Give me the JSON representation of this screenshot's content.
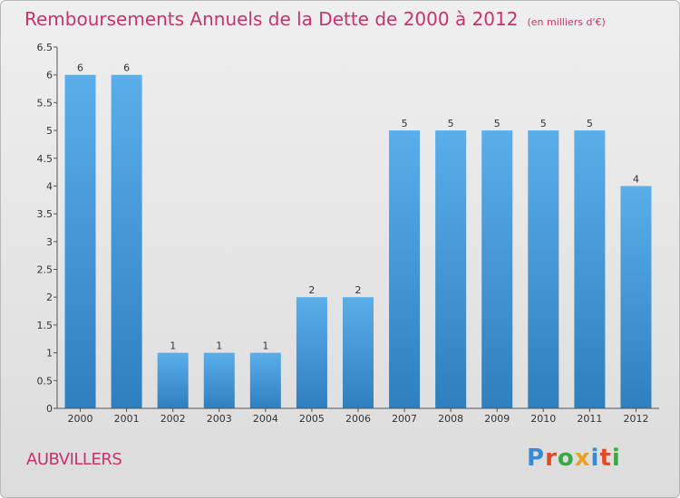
{
  "title": "Remboursements Annuels de la Dette de 2000 à 2012",
  "unit": "(en milliers d'€)",
  "city": "AUBVILLERS",
  "logo": {
    "letters": [
      "P",
      "r",
      "o",
      "x",
      "i",
      "t",
      "i"
    ]
  },
  "colors": {
    "title": "#c8326e",
    "bar_top": "#5aaeea",
    "bar_bottom": "#2e7fbe",
    "logo": [
      "#3a8ad6",
      "#e04b2a",
      "#3aa845",
      "#f0a020",
      "#3a8ad6",
      "#e04b2a",
      "#3aa845"
    ]
  },
  "chart_data": {
    "type": "bar",
    "categories": [
      "2000",
      "2001",
      "2002",
      "2003",
      "2004",
      "2005",
      "2006",
      "2007",
      "2008",
      "2009",
      "2010",
      "2011",
      "2012"
    ],
    "values": [
      6,
      6,
      1,
      1,
      1,
      2,
      2,
      5,
      5,
      5,
      5,
      5,
      4
    ],
    "data_labels": [
      "6",
      "6",
      "1",
      "1",
      "1",
      "2",
      "2",
      "5",
      "5",
      "5",
      "5",
      "5",
      "4"
    ],
    "y_ticks": [
      "0",
      "0.5",
      "1",
      "1.5",
      "2",
      "2.5",
      "3",
      "3.5",
      "4",
      "4.5",
      "5",
      "5.5",
      "6",
      "6.5"
    ],
    "ylim": [
      0,
      6.5
    ],
    "grid": false
  }
}
